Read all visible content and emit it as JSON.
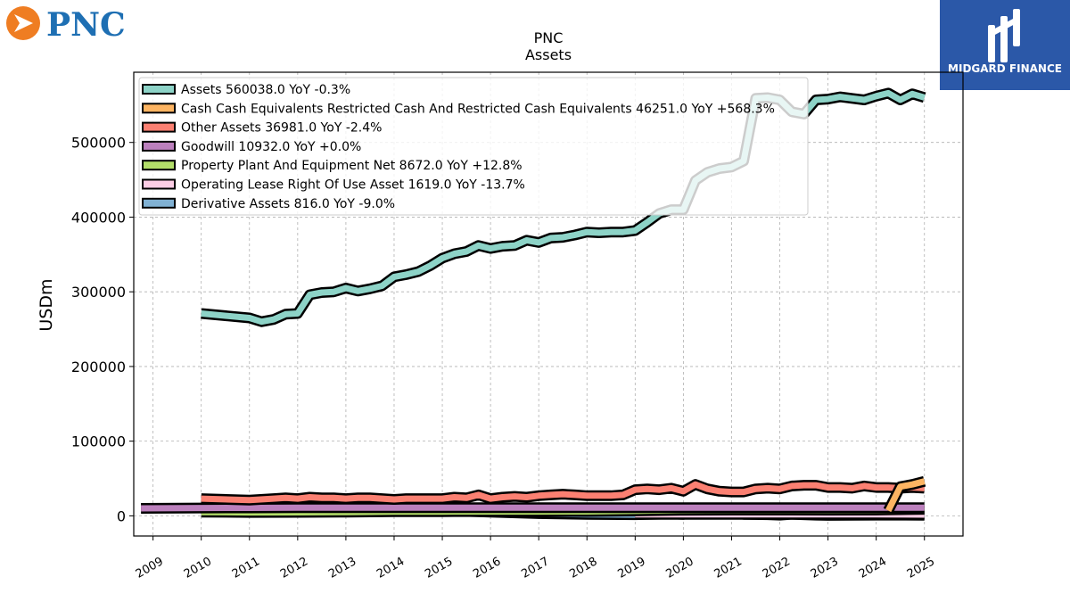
{
  "brand": {
    "name": "PNC",
    "partner": "MIDGARD FINANCE"
  },
  "chart_data": {
    "type": "area",
    "title": "PNC",
    "subtitle": "Assets",
    "ylabel": "USDm",
    "xlabel": "",
    "xlim": [
      2008.6,
      2025.8
    ],
    "ylim": [
      -27000,
      594000
    ],
    "yticks": [
      0,
      100000,
      200000,
      300000,
      400000,
      500000
    ],
    "ytick_labels": [
      "0",
      "100000",
      "200000",
      "300000",
      "400000",
      "500000"
    ],
    "xticks": [
      2009,
      2010,
      2011,
      2012,
      2013,
      2014,
      2015,
      2016,
      2017,
      2018,
      2019,
      2020,
      2021,
      2022,
      2023,
      2024,
      2025
    ],
    "xtick_labels": [
      "2009",
      "2010",
      "2011",
      "2012",
      "2013",
      "2014",
      "2015",
      "2016",
      "2017",
      "2018",
      "2019",
      "2020",
      "2021",
      "2022",
      "2023",
      "2024",
      "2025"
    ],
    "grid": true,
    "legend_position": "top-left",
    "series": [
      {
        "name": "Assets",
        "legend_label": "Assets  560038.0 YoY -0.3%",
        "color": "#8dd3c7",
        "points": [
          [
            2010.0,
            271000
          ],
          [
            2011.0,
            265000
          ],
          [
            2011.25,
            260000
          ],
          [
            2011.5,
            263000
          ],
          [
            2011.75,
            270000
          ],
          [
            2012.0,
            271000
          ],
          [
            2012.25,
            296000
          ],
          [
            2012.5,
            299000
          ],
          [
            2012.75,
            300000
          ],
          [
            2013.0,
            305000
          ],
          [
            2013.25,
            301000
          ],
          [
            2013.5,
            304000
          ],
          [
            2013.75,
            308000
          ],
          [
            2014.0,
            320000
          ],
          [
            2014.25,
            323000
          ],
          [
            2014.5,
            327000
          ],
          [
            2014.75,
            335000
          ],
          [
            2015.0,
            345000
          ],
          [
            2015.25,
            351000
          ],
          [
            2015.5,
            354000
          ],
          [
            2015.75,
            362000
          ],
          [
            2016.0,
            358000
          ],
          [
            2016.25,
            361000
          ],
          [
            2016.5,
            362000
          ],
          [
            2016.75,
            369000
          ],
          [
            2017.0,
            366000
          ],
          [
            2017.25,
            372000
          ],
          [
            2017.5,
            373000
          ],
          [
            2017.75,
            376000
          ],
          [
            2018.0,
            380000
          ],
          [
            2018.25,
            379000
          ],
          [
            2018.5,
            380000
          ],
          [
            2018.75,
            380000
          ],
          [
            2019.0,
            382000
          ],
          [
            2019.25,
            393000
          ],
          [
            2019.5,
            405000
          ],
          [
            2019.75,
            410000
          ],
          [
            2020.0,
            410000
          ],
          [
            2020.25,
            449000
          ],
          [
            2020.5,
            460000
          ],
          [
            2020.75,
            465000
          ],
          [
            2021.0,
            467000
          ],
          [
            2021.25,
            475000
          ],
          [
            2021.5,
            559000
          ],
          [
            2021.75,
            560000
          ],
          [
            2022.0,
            557000
          ],
          [
            2022.25,
            541000
          ],
          [
            2022.5,
            538000
          ],
          [
            2022.75,
            557000
          ],
          [
            2023.0,
            558000
          ],
          [
            2023.25,
            561000
          ],
          [
            2023.5,
            559000
          ],
          [
            2023.75,
            557000
          ],
          [
            2024.0,
            562000
          ],
          [
            2024.25,
            566000
          ],
          [
            2024.5,
            557000
          ],
          [
            2024.75,
            565000
          ],
          [
            2025.0,
            560038
          ]
        ]
      },
      {
        "name": "Cash Cash Equivalents Restricted Cash And Restricted Cash Equivalents",
        "legend_label": "Cash Cash Equivalents Restricted Cash And Restricted Cash Equivalents  46251.0 YoY +568.3%",
        "color": "#fdb462",
        "points": [
          [
            2024.25,
            7000
          ],
          [
            2024.5,
            39000
          ],
          [
            2024.75,
            42000
          ],
          [
            2025.0,
            46251
          ]
        ]
      },
      {
        "name": "Other Assets",
        "legend_label": "Other Assets  36981.0 YoY -2.4%",
        "color": "#fb8072",
        "points": [
          [
            2010.0,
            23000
          ],
          [
            2011.0,
            21000
          ],
          [
            2011.5,
            23000
          ],
          [
            2011.75,
            24000
          ],
          [
            2012.0,
            23000
          ],
          [
            2012.25,
            25000
          ],
          [
            2012.5,
            24000
          ],
          [
            2012.75,
            24000
          ],
          [
            2013.0,
            23000
          ],
          [
            2013.25,
            24000
          ],
          [
            2013.5,
            24000
          ],
          [
            2013.75,
            23000
          ],
          [
            2014.0,
            22000
          ],
          [
            2014.25,
            23000
          ],
          [
            2014.5,
            23000
          ],
          [
            2014.75,
            23000
          ],
          [
            2015.0,
            23000
          ],
          [
            2015.25,
            25000
          ],
          [
            2015.5,
            24000
          ],
          [
            2015.75,
            28000
          ],
          [
            2016.0,
            23000
          ],
          [
            2016.25,
            25000
          ],
          [
            2016.5,
            26000
          ],
          [
            2016.75,
            25000
          ],
          [
            2017.0,
            27000
          ],
          [
            2017.25,
            28000
          ],
          [
            2017.5,
            29000
          ],
          [
            2017.75,
            28000
          ],
          [
            2018.0,
            27000
          ],
          [
            2018.25,
            27000
          ],
          [
            2018.5,
            27000
          ],
          [
            2018.75,
            28000
          ],
          [
            2019.0,
            35000
          ],
          [
            2019.25,
            36000
          ],
          [
            2019.5,
            35000
          ],
          [
            2019.75,
            37000
          ],
          [
            2020.0,
            33000
          ],
          [
            2020.25,
            42000
          ],
          [
            2020.5,
            36000
          ],
          [
            2020.75,
            33000
          ],
          [
            2021.0,
            32000
          ],
          [
            2021.25,
            32000
          ],
          [
            2021.5,
            36000
          ],
          [
            2021.75,
            37000
          ],
          [
            2022.0,
            36000
          ],
          [
            2022.25,
            40000
          ],
          [
            2022.5,
            41000
          ],
          [
            2022.75,
            41000
          ],
          [
            2023.0,
            38000
          ],
          [
            2023.25,
            38000
          ],
          [
            2023.5,
            37000
          ],
          [
            2023.75,
            40000
          ],
          [
            2024.0,
            38000
          ],
          [
            2024.25,
            38000
          ],
          [
            2024.5,
            37000
          ],
          [
            2024.75,
            38000
          ],
          [
            2025.0,
            36981
          ]
        ]
      },
      {
        "name": "Goodwill",
        "legend_label": "Goodwill  10932.0 YoY +0.0%",
        "color": "#bc80bd",
        "points": [
          [
            2008.75,
            10000
          ],
          [
            2010.0,
            10500
          ],
          [
            2011.0,
            10600
          ],
          [
            2012.0,
            10900
          ],
          [
            2013.0,
            10900
          ],
          [
            2014.0,
            10900
          ],
          [
            2015.0,
            10900
          ],
          [
            2016.0,
            10900
          ],
          [
            2017.0,
            10900
          ],
          [
            2018.0,
            10900
          ],
          [
            2019.0,
            10900
          ],
          [
            2020.0,
            10900
          ],
          [
            2021.0,
            10900
          ],
          [
            2022.0,
            10932
          ],
          [
            2023.0,
            10932
          ],
          [
            2024.0,
            10932
          ],
          [
            2025.0,
            10932
          ]
        ]
      },
      {
        "name": "Property Plant And Equipment Net",
        "legend_label": "Property Plant And Equipment Net  8672.0 YoY +12.8%",
        "color": "#b3de69",
        "points": [
          [
            2010.0,
            5000
          ],
          [
            2011.0,
            4500
          ],
          [
            2012.0,
            4700
          ],
          [
            2013.0,
            5000
          ],
          [
            2014.0,
            5500
          ],
          [
            2015.0,
            5600
          ],
          [
            2016.0,
            5700
          ],
          [
            2017.0,
            5700
          ],
          [
            2018.0,
            5900
          ],
          [
            2019.0,
            6500
          ],
          [
            2020.0,
            7500
          ],
          [
            2021.0,
            7800
          ],
          [
            2022.0,
            7700
          ],
          [
            2023.0,
            7600
          ],
          [
            2024.0,
            7700
          ],
          [
            2025.0,
            8672
          ]
        ]
      },
      {
        "name": "Operating Lease Right Of Use Asset",
        "legend_label": "Operating Lease Right Of Use Asset  1619.0 YoY -13.7%",
        "color": "#fccde5",
        "points": [
          [
            2019.0,
            2000
          ],
          [
            2020.0,
            2000
          ],
          [
            2021.0,
            2000
          ],
          [
            2022.0,
            1900
          ],
          [
            2023.0,
            1900
          ],
          [
            2024.0,
            1876
          ],
          [
            2025.0,
            1619
          ]
        ]
      },
      {
        "name": "Derivative Assets",
        "legend_label": "Derivative Assets  816.0 YoY -9.0%",
        "color": "#80b1d3",
        "points": [
          [
            2011.0,
            5000
          ],
          [
            2011.5,
            8000
          ],
          [
            2012.0,
            9000
          ],
          [
            2013.0,
            9500
          ],
          [
            2014.0,
            8000
          ],
          [
            2015.0,
            7000
          ],
          [
            2016.0,
            5000
          ],
          [
            2017.0,
            3000
          ],
          [
            2018.0,
            2000
          ],
          [
            2019.0,
            1500
          ],
          [
            2019.75,
            2500
          ],
          [
            2020.0,
            2000
          ],
          [
            2020.25,
            5000
          ],
          [
            2021.0,
            4000
          ],
          [
            2021.25,
            2000
          ],
          [
            2021.75,
            1500
          ],
          [
            2022.0,
            1000
          ],
          [
            2022.25,
            2000
          ],
          [
            2022.75,
            1000
          ],
          [
            2023.0,
            600
          ],
          [
            2024.0,
            897
          ],
          [
            2025.0,
            816
          ]
        ]
      }
    ]
  }
}
